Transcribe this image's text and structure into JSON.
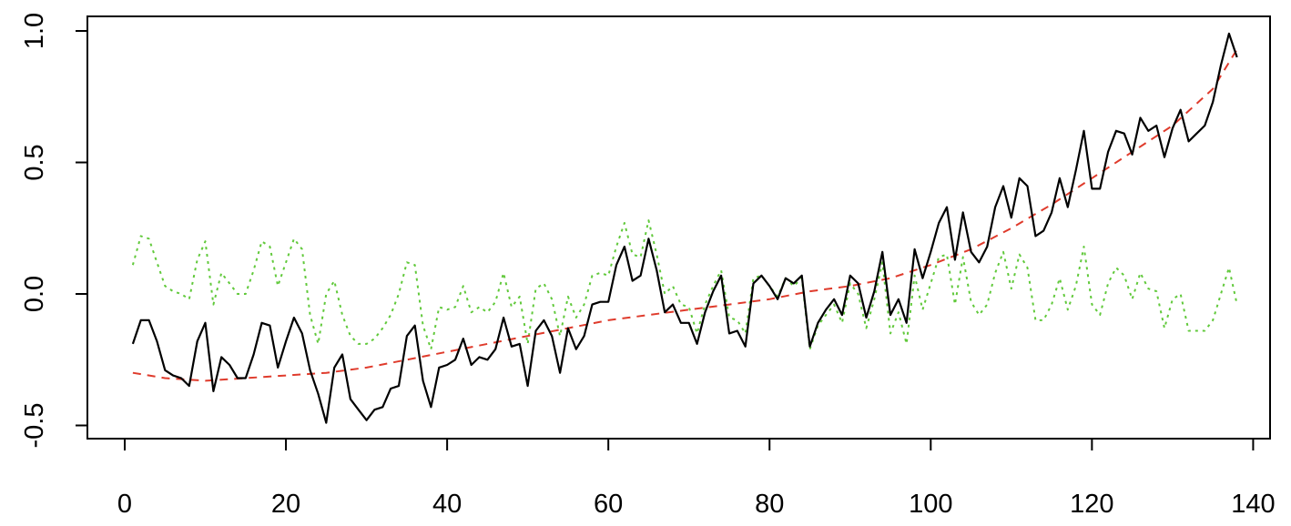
{
  "chart_data": {
    "type": "line",
    "title": "",
    "xlabel": "",
    "ylabel": "",
    "xlim": [
      0,
      140
    ],
    "ylim": [
      -0.5,
      1.0
    ],
    "grid": false,
    "legend": "none",
    "x_ticks": [
      "0",
      "20",
      "40",
      "60",
      "80",
      "100",
      "120",
      "140"
    ],
    "y_ticks": [
      "-0.5",
      "0.0",
      "0.5",
      "1.0"
    ],
    "series": [
      {
        "style": "solid",
        "color": "#000000",
        "x": [
          1,
          2,
          3,
          4,
          5,
          6,
          7,
          8,
          9,
          10,
          11,
          12,
          13,
          14,
          15,
          16,
          17,
          18,
          19,
          20,
          21,
          22,
          23,
          24,
          25,
          26,
          27,
          28,
          29,
          30,
          31,
          32,
          33,
          34,
          35,
          36,
          37,
          38,
          39,
          40,
          41,
          42,
          43,
          44,
          45,
          46,
          47,
          48,
          49,
          50,
          51,
          52,
          53,
          54,
          55,
          56,
          57,
          58,
          59,
          60,
          61,
          62,
          63,
          64,
          65,
          66,
          67,
          68,
          69,
          70,
          71,
          72,
          73,
          74,
          75,
          76,
          77,
          78,
          79,
          80,
          81,
          82,
          83,
          84,
          85,
          86,
          87,
          88,
          89,
          90,
          91,
          92,
          93,
          94,
          95,
          96,
          97,
          98,
          99,
          100,
          101,
          102,
          103,
          104,
          105,
          106,
          107,
          108,
          109,
          110,
          111,
          112,
          113,
          114,
          115,
          116,
          117,
          118,
          119,
          120,
          121,
          122,
          123,
          124,
          125,
          126,
          127,
          128,
          129,
          130,
          131,
          132,
          133,
          134,
          135,
          136,
          137,
          138
        ],
        "values": [
          -0.19,
          -0.1,
          -0.1,
          -0.18,
          -0.29,
          -0.31,
          -0.32,
          -0.35,
          -0.18,
          -0.11,
          -0.37,
          -0.24,
          -0.27,
          -0.32,
          -0.32,
          -0.23,
          -0.11,
          -0.12,
          -0.28,
          -0.18,
          -0.09,
          -0.15,
          -0.29,
          -0.38,
          -0.49,
          -0.28,
          -0.23,
          -0.4,
          -0.44,
          -0.48,
          -0.44,
          -0.43,
          -0.36,
          -0.35,
          -0.16,
          -0.12,
          -0.33,
          -0.43,
          -0.28,
          -0.27,
          -0.25,
          -0.17,
          -0.27,
          -0.24,
          -0.25,
          -0.21,
          -0.09,
          -0.2,
          -0.19,
          -0.35,
          -0.14,
          -0.1,
          -0.16,
          -0.3,
          -0.13,
          -0.21,
          -0.16,
          -0.04,
          -0.03,
          -0.03,
          0.11,
          0.18,
          0.05,
          0.07,
          0.21,
          0.09,
          -0.07,
          -0.04,
          -0.11,
          -0.11,
          -0.19,
          -0.07,
          0.01,
          0.07,
          -0.15,
          -0.14,
          -0.2,
          0.04,
          0.07,
          0.03,
          -0.02,
          0.06,
          0.04,
          0.07,
          -0.2,
          -0.11,
          -0.06,
          -0.02,
          -0.08,
          0.07,
          0.04,
          -0.09,
          0.01,
          0.16,
          -0.08,
          -0.02,
          -0.11,
          0.17,
          0.06,
          0.16,
          0.27,
          0.33,
          0.13,
          0.31,
          0.16,
          0.12,
          0.18,
          0.33,
          0.41,
          0.29,
          0.44,
          0.41,
          0.22,
          0.24,
          0.31,
          0.44,
          0.33,
          0.47,
          0.62,
          0.4,
          0.4,
          0.54,
          0.62,
          0.61,
          0.53,
          0.67,
          0.62,
          0.64,
          0.52,
          0.63,
          0.7,
          0.58,
          0.61,
          0.64,
          0.73,
          0.87,
          0.99,
          0.9
        ]
      },
      {
        "style": "dashed",
        "color": "#df3b2c",
        "x": [
          1,
          5,
          10,
          15,
          20,
          25,
          30,
          35,
          40,
          45,
          50,
          55,
          60,
          65,
          70,
          75,
          80,
          85,
          90,
          95,
          100,
          105,
          110,
          115,
          120,
          125,
          130,
          135,
          138
        ],
        "values": [
          -0.3,
          -0.32,
          -0.33,
          -0.32,
          -0.31,
          -0.3,
          -0.28,
          -0.25,
          -0.22,
          -0.19,
          -0.16,
          -0.13,
          -0.1,
          -0.08,
          -0.06,
          -0.04,
          -0.02,
          0.01,
          0.03,
          0.06,
          0.11,
          0.17,
          0.25,
          0.34,
          0.44,
          0.54,
          0.64,
          0.78,
          0.93
        ]
      },
      {
        "style": "dotted",
        "color": "#61c93b",
        "x": [
          1,
          2,
          3,
          4,
          5,
          6,
          7,
          8,
          9,
          10,
          11,
          12,
          13,
          14,
          15,
          16,
          17,
          18,
          19,
          20,
          21,
          22,
          23,
          24,
          25,
          26,
          27,
          28,
          29,
          30,
          31,
          32,
          33,
          34,
          35,
          36,
          37,
          38,
          39,
          40,
          41,
          42,
          43,
          44,
          45,
          46,
          47,
          48,
          49,
          50,
          51,
          52,
          53,
          54,
          55,
          56,
          57,
          58,
          59,
          60,
          61,
          62,
          63,
          64,
          65,
          66,
          67,
          68,
          69,
          70,
          71,
          72,
          73,
          74,
          75,
          76,
          77,
          78,
          79,
          80,
          81,
          82,
          83,
          84,
          85,
          86,
          87,
          88,
          89,
          90,
          91,
          92,
          93,
          94,
          95,
          96,
          97,
          98,
          99,
          100,
          101,
          102,
          103,
          104,
          105,
          106,
          107,
          108,
          109,
          110,
          111,
          112,
          113,
          114,
          115,
          116,
          117,
          118,
          119,
          120,
          121,
          122,
          123,
          124,
          125,
          126,
          127,
          128,
          129,
          130,
          131,
          132,
          133,
          134,
          135,
          136,
          137,
          138
        ],
        "values": [
          0.11,
          0.22,
          0.21,
          0.12,
          0.03,
          0.01,
          0.0,
          -0.02,
          0.13,
          0.2,
          -0.04,
          0.08,
          0.04,
          0.0,
          0.0,
          0.09,
          0.2,
          0.18,
          0.03,
          0.12,
          0.21,
          0.17,
          -0.08,
          -0.19,
          0.0,
          0.05,
          -0.08,
          -0.16,
          -0.19,
          -0.19,
          -0.17,
          -0.13,
          -0.08,
          0.0,
          0.12,
          0.11,
          -0.12,
          -0.21,
          -0.05,
          -0.06,
          -0.05,
          0.03,
          -0.07,
          -0.05,
          -0.07,
          -0.03,
          0.08,
          -0.05,
          -0.01,
          -0.19,
          0.02,
          0.04,
          -0.02,
          -0.16,
          -0.01,
          -0.09,
          -0.04,
          0.07,
          0.08,
          0.07,
          0.18,
          0.27,
          0.15,
          0.14,
          0.28,
          0.15,
          0.0,
          0.03,
          -0.04,
          -0.05,
          -0.15,
          -0.04,
          0.03,
          0.09,
          -0.09,
          -0.1,
          -0.15,
          0.06,
          0.07,
          0.03,
          -0.01,
          0.06,
          0.03,
          0.06,
          -0.21,
          -0.12,
          -0.08,
          -0.04,
          -0.11,
          0.04,
          0.0,
          -0.13,
          -0.02,
          0.12,
          -0.15,
          -0.07,
          -0.19,
          0.07,
          -0.06,
          0.04,
          0.14,
          0.15,
          -0.04,
          0.14,
          -0.03,
          -0.08,
          -0.04,
          0.08,
          0.16,
          0.02,
          0.15,
          0.1,
          -0.1,
          -0.1,
          -0.04,
          0.06,
          -0.06,
          0.03,
          0.18,
          -0.04,
          -0.08,
          0.04,
          0.1,
          0.07,
          -0.02,
          0.08,
          0.02,
          0.01,
          -0.13,
          -0.02,
          0.0,
          -0.14,
          -0.14,
          -0.14,
          -0.1,
          0.0,
          0.1,
          -0.04
        ]
      }
    ]
  }
}
